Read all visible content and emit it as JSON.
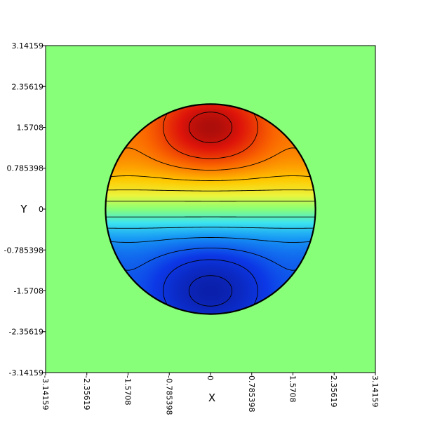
{
  "chart_data": {
    "type": "heatmap",
    "title": "",
    "xlabel": "X",
    "ylabel": "Y",
    "xlim": [
      -3.14159,
      3.14159
    ],
    "ylim": [
      -3.14159,
      3.14159
    ],
    "x_ticks": [
      {
        "value": -3.14159,
        "label": "-3.14159"
      },
      {
        "value": -2.35619,
        "label": "-2.35619"
      },
      {
        "value": -1.5708,
        "label": "-1.5708"
      },
      {
        "value": -0.785398,
        "label": "-0.785398"
      },
      {
        "value": 0,
        "label": "0"
      },
      {
        "value": 0.785398,
        "label": "0.785398"
      },
      {
        "value": 1.5708,
        "label": "1.5708"
      },
      {
        "value": 2.35619,
        "label": "2.35619"
      },
      {
        "value": 3.14159,
        "label": "3.14159"
      }
    ],
    "y_ticks": [
      {
        "value": 3.14159,
        "label": "3.14159"
      },
      {
        "value": 2.35619,
        "label": "2.35619"
      },
      {
        "value": 1.5708,
        "label": "1.5708"
      },
      {
        "value": 0.785398,
        "label": "0.785398"
      },
      {
        "value": 0,
        "label": "0"
      },
      {
        "value": -0.785398,
        "label": "-0.785398"
      },
      {
        "value": -1.5708,
        "label": "-1.5708"
      },
      {
        "value": -2.35619,
        "label": "-2.35619"
      },
      {
        "value": -3.14159,
        "label": "-3.14159"
      }
    ],
    "domain": {
      "shape": "circle",
      "center": [
        0,
        0
      ],
      "radius": 2.0
    },
    "field": "sin(y) * (1 + 0.22 * sin(y)^2 * cos(2x))",
    "value_range": [
      -1.3,
      1.3
    ],
    "background_value": 0,
    "contour_levels": [
      -1.15,
      -0.95,
      -0.75,
      -0.55,
      -0.35,
      -0.15,
      0.15,
      0.35,
      0.55,
      0.75,
      0.95,
      1.15
    ],
    "colormap": "rainbow (blue-cyan-green-yellow-red)",
    "colors": {
      "background_field": "#88ff78",
      "low": "#0a1a9e",
      "high": "#8e0a0a",
      "contour_line": "#000000",
      "boundary": "#000000"
    },
    "grid": false,
    "legend": "none"
  }
}
